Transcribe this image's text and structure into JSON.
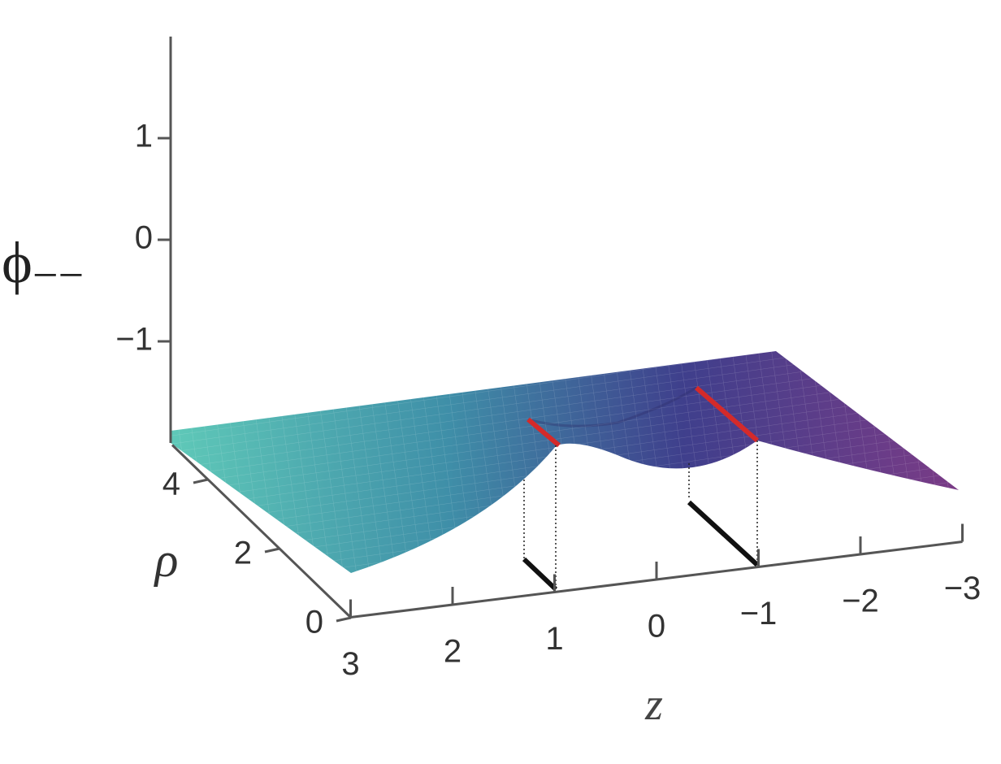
{
  "chart_data": {
    "type": "surface",
    "zlabel": {
      "symbol": "ϕ",
      "subscript": "−−"
    },
    "ylabel": "ρ",
    "xlabel": "z",
    "xlim": [
      3,
      -3
    ],
    "xticks": [
      3,
      2,
      1,
      0,
      {
        "value": -1,
        "label": "−1"
      },
      {
        "value": -2,
        "label": "−2"
      },
      {
        "value": -3,
        "label": "−3"
      }
    ],
    "ylim": [
      0,
      5
    ],
    "yticks": [
      0,
      2,
      4
    ],
    "zlim": [
      -2,
      2
    ],
    "zticks": [
      {
        "value": -1,
        "label": "−1"
      },
      0,
      1
    ]
  }
}
